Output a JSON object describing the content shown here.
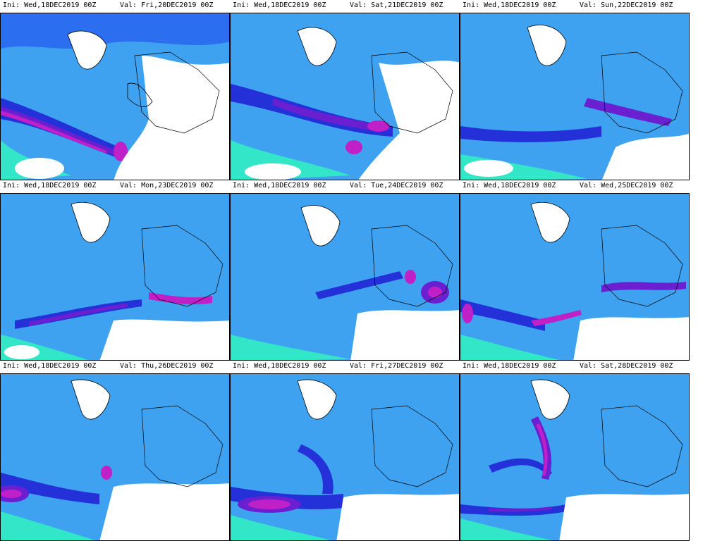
{
  "figure": {
    "panels": [
      {
        "ini": "Ini: Wed,18DEC2019 00Z",
        "val": "Val: Fri,20DEC2019 00Z"
      },
      {
        "ini": "Ini: Wed,18DEC2019 00Z",
        "val": "Val: Sat,21DEC2019 00Z"
      },
      {
        "ini": "Ini: Wed,18DEC2019 00Z",
        "val": "Val: Sun,22DEC2019 00Z"
      },
      {
        "ini": "Ini: Wed,18DEC2019 00Z",
        "val": "Val: Mon,23DEC2019 00Z"
      },
      {
        "ini": "Ini: Wed,18DEC2019 00Z",
        "val": "Val: Tue,24DEC2019 00Z"
      },
      {
        "ini": "Ini: Wed,18DEC2019 00Z",
        "val": "Val: Wed,25DEC2019 00Z"
      },
      {
        "ini": "Ini: Wed,18DEC2019 00Z",
        "val": "Val: Thu,26DEC2019 00Z"
      },
      {
        "ini": "Ini: Wed,18DEC2019 00Z",
        "val": "Val: Fri,27DEC2019 00Z"
      },
      {
        "ini": "Ini: Wed,18DEC2019 00Z",
        "val": "Val: Sat,28DEC2019 00Z"
      }
    ],
    "palette": {
      "white": "#ffffff",
      "aqua": "#33e6c8",
      "light_blue": "#3fa2f0",
      "blue": "#2b6ff0",
      "deep_blue": "#2430d8",
      "violet": "#6a1fd0",
      "magenta": "#c020c8",
      "land_line": "#000000"
    }
  }
}
